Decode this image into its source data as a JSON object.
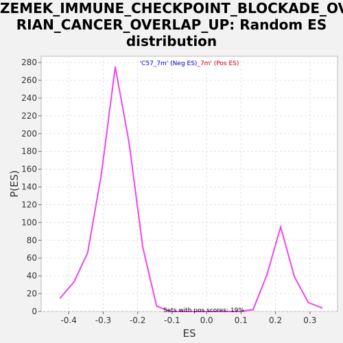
{
  "chart_data": {
    "type": "line",
    "title_lines": [
      "ZEMEK_IMMUNE_CHECKPOINT_BLOCKADE_OVA",
      "RIAN_CANCER_OVERLAP_UP: Random ES",
      "distribution"
    ],
    "xlabel": "ES",
    "ylabel": "P(ES)",
    "xlim": [
      -0.48,
      0.38
    ],
    "ylim": [
      0,
      287
    ],
    "xticks": [
      -0.4,
      -0.3,
      -0.2,
      -0.1,
      0.0,
      0.1,
      0.2,
      0.3
    ],
    "xtick_labels": [
      "-0.4",
      "-0.3",
      "-0.2",
      "-0.1",
      "0.0",
      "0.1",
      "0.2",
      "0.3"
    ],
    "yticks": [
      0,
      20,
      40,
      60,
      80,
      100,
      120,
      140,
      160,
      180,
      200,
      220,
      240,
      260,
      280
    ],
    "ytick_labels": [
      "0",
      "20",
      "40",
      "60",
      "80",
      "100",
      "120",
      "140",
      "160",
      "180",
      "200",
      "220",
      "240",
      "260",
      "280"
    ],
    "grid": true,
    "legend": {
      "placement": "top-center",
      "part1": "'C57_7m' (Neg ES)",
      "part2": "_7m' (Pos ES)",
      "part1_color": "#0000cc",
      "part2_color": "#cc0000"
    },
    "annotation": "Sets with pos scores: 19%",
    "series": [
      {
        "color": "#ee44ee",
        "x": [
          -0.425,
          -0.385,
          -0.345,
          -0.305,
          -0.265,
          -0.225,
          -0.185,
          -0.145,
          -0.105,
          -0.065,
          -0.025,
          0.015,
          0.055,
          0.095,
          0.135,
          0.175,
          0.215,
          0.255,
          0.295,
          0.335
        ],
        "y": [
          15,
          33,
          66,
          155,
          275,
          190,
          72,
          6,
          0,
          0,
          0,
          0,
          0,
          0,
          2,
          41,
          95,
          39,
          10,
          4
        ]
      }
    ]
  }
}
